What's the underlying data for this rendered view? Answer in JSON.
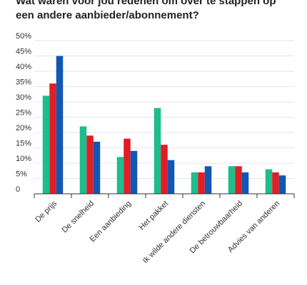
{
  "chart_data": {
    "type": "bar",
    "title_lines": [
      "Wat waren voor jou redenen om over te stappen op",
      "een andere aanbieder/abonnement?"
    ],
    "categories": [
      "De prijs",
      "De snelheid",
      "Een aanbieding",
      "Het pakket",
      "Ik wilde andere diensten",
      "De betrouwbaarheid",
      "Advies van anderen"
    ],
    "series": [
      {
        "color": "#1dbd8c",
        "values": [
          32,
          22,
          12,
          28,
          7,
          9,
          8
        ]
      },
      {
        "color": "#e11d25",
        "values": [
          36,
          19,
          18,
          16,
          7,
          9,
          7
        ]
      },
      {
        "color": "#1157b3",
        "values": [
          45,
          17,
          14,
          11,
          9,
          7,
          6
        ]
      }
    ],
    "ylim": [
      0,
      50
    ],
    "yticks": [
      0,
      {
        "value": 5,
        "label": "5%"
      },
      {
        "value": 10,
        "label": "10%"
      },
      {
        "value": 15,
        "label": "15%"
      },
      {
        "value": 20,
        "label": "20%"
      },
      {
        "value": 25,
        "label": "25%"
      },
      {
        "value": 30,
        "label": "30%"
      },
      {
        "value": 35,
        "label": "35%"
      },
      {
        "value": 40,
        "label": "40%"
      },
      {
        "value": 45,
        "label": "45%"
      },
      {
        "value": 50,
        "label": "50%"
      }
    ],
    "grid": true
  }
}
